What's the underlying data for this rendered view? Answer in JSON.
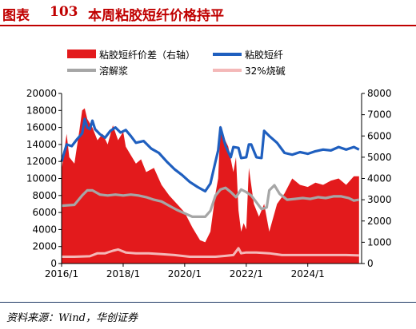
{
  "figure": {
    "label": "图表",
    "number": "103",
    "title": "本周粘胶短纤价格持平",
    "source": "资料来源：Wind，华创证券"
  },
  "colors": {
    "title": "#c00000",
    "spread": "#e31a1c",
    "viscose": "#1f5fbf",
    "pulp": "#a6a6a6",
    "soda": "#f4b8b8",
    "footer_rule": "#1f3864"
  },
  "chart_data": {
    "type": "line",
    "x_ticks": [
      "2016/1",
      "2018/1",
      "2020/1",
      "2022/1",
      "2024/1"
    ],
    "x_range": [
      "2016-01-01",
      "2025-10-01"
    ],
    "y_left": {
      "min": 0,
      "max": 20000,
      "ticks": [
        0,
        2000,
        4000,
        6000,
        8000,
        10000,
        12000,
        14000,
        16000,
        18000,
        20000
      ]
    },
    "y_right": {
      "min": 0,
      "max": 8000,
      "ticks": [
        0,
        1000,
        2000,
        3000,
        4000,
        5000,
        6000,
        7000,
        8000
      ]
    },
    "legend": [
      "粘胶短纤价差（右轴）",
      "粘胶短纤",
      "溶解浆",
      "32%烧碱"
    ],
    "legend_position": "top",
    "grid": false,
    "series": [
      {
        "name": "粘胶短纤价差（右轴）",
        "type": "area",
        "axis": "right",
        "x": [
          "2016-01-01",
          "2016-03-01",
          "2016-04-01",
          "2016-06-01",
          "2016-08-01",
          "2016-09-01",
          "2016-10-01",
          "2016-11-01",
          "2017-01-01",
          "2017-03-01",
          "2017-05-01",
          "2017-07-01",
          "2017-09-01",
          "2017-11-01",
          "2018-01-01",
          "2018-02-01",
          "2018-04-01",
          "2018-06-01",
          "2018-08-01",
          "2018-10-01",
          "2019-01-01",
          "2019-04-01",
          "2019-07-01",
          "2019-10-01",
          "2020-01-01",
          "2020-04-01",
          "2020-07-01",
          "2020-09-01",
          "2020-11-01",
          "2021-01-01",
          "2021-02-01",
          "2021-03-01",
          "2021-04-01",
          "2021-06-01",
          "2021-08-01",
          "2021-09-01",
          "2021-10-01",
          "2021-11-01",
          "2021-12-01",
          "2022-01-01",
          "2022-02-01",
          "2022-04-01",
          "2022-06-01",
          "2022-08-01",
          "2022-10-01",
          "2023-01-01",
          "2023-04-01",
          "2023-07-01",
          "2023-10-01",
          "2024-01-01",
          "2024-04-01",
          "2024-07-01",
          "2024-10-01",
          "2025-01-01",
          "2025-04-01",
          "2025-07-01",
          "2025-09-01"
        ],
        "values": [
          4400,
          6100,
          5000,
          4700,
          6300,
          7200,
          7300,
          6800,
          6400,
          5800,
          6100,
          5600,
          6500,
          5800,
          6200,
          5500,
          5100,
          4700,
          4900,
          4300,
          4500,
          3700,
          3200,
          2800,
          2400,
          1700,
          1100,
          1000,
          1500,
          3300,
          4000,
          6500,
          6000,
          5500,
          4300,
          5000,
          2500,
          1500,
          1900,
          1600,
          4500,
          2800,
          2200,
          2800,
          1500,
          2800,
          3300,
          4000,
          3700,
          3600,
          3800,
          3700,
          3900,
          4000,
          3700,
          4100,
          4100
        ]
      },
      {
        "name": "粘胶短纤",
        "type": "line",
        "axis": "left",
        "x": [
          "2016-01-01",
          "2016-03-01",
          "2016-05-01",
          "2016-07-01",
          "2016-09-01",
          "2016-10-01",
          "2016-11-01",
          "2016-12-01",
          "2017-01-01",
          "2017-02-01",
          "2017-04-01",
          "2017-06-01",
          "2017-08-01",
          "2017-10-01",
          "2017-12-01",
          "2018-02-01",
          "2018-04-01",
          "2018-06-01",
          "2018-09-01",
          "2018-12-01",
          "2019-03-01",
          "2019-06-01",
          "2019-09-01",
          "2019-12-01",
          "2020-03-01",
          "2020-06-01",
          "2020-09-01",
          "2020-11-01",
          "2021-01-01",
          "2021-02-01",
          "2021-03-01",
          "2021-05-01",
          "2021-07-01",
          "2021-08-01",
          "2021-10-01",
          "2021-11-01",
          "2022-01-01",
          "2022-02-01",
          "2022-03-01",
          "2022-05-01",
          "2022-07-01",
          "2022-08-01",
          "2022-10-01",
          "2023-01-01",
          "2023-04-01",
          "2023-07-01",
          "2023-10-01",
          "2024-01-01",
          "2024-04-01",
          "2024-07-01",
          "2024-10-01",
          "2025-01-01",
          "2025-04-01",
          "2025-07-01",
          "2025-09-01"
        ],
        "values": [
          12000,
          14000,
          13800,
          14600,
          15300,
          17000,
          16000,
          15800,
          16800,
          15800,
          15200,
          14800,
          15600,
          16000,
          15400,
          15700,
          15000,
          14200,
          14400,
          13500,
          13000,
          12000,
          11100,
          10400,
          9600,
          9000,
          8500,
          9400,
          12000,
          13300,
          16000,
          13800,
          12500,
          13700,
          13600,
          12400,
          12500,
          14000,
          14000,
          12500,
          12400,
          15600,
          15000,
          14200,
          13000,
          12800,
          13100,
          12900,
          13200,
          13400,
          13300,
          13700,
          13400,
          13700,
          13400
        ]
      },
      {
        "name": "溶解浆",
        "type": "line",
        "axis": "left",
        "x": [
          "2016-01-01",
          "2016-06-01",
          "2016-09-01",
          "2016-11-01",
          "2017-01-01",
          "2017-04-01",
          "2017-07-01",
          "2017-10-01",
          "2018-01-01",
          "2018-04-01",
          "2018-07-01",
          "2018-10-01",
          "2019-01-01",
          "2019-04-01",
          "2019-07-01",
          "2019-10-01",
          "2020-01-01",
          "2020-04-01",
          "2020-07-01",
          "2020-09-01",
          "2020-11-01",
          "2021-01-01",
          "2021-03-01",
          "2021-05-01",
          "2021-07-01",
          "2021-09-01",
          "2021-11-01",
          "2022-01-01",
          "2022-03-01",
          "2022-05-01",
          "2022-07-01",
          "2022-09-01",
          "2022-10-01",
          "2022-12-01",
          "2023-02-01",
          "2023-05-01",
          "2023-08-01",
          "2023-11-01",
          "2024-02-01",
          "2024-05-01",
          "2024-08-01",
          "2024-11-01",
          "2025-02-01",
          "2025-05-01",
          "2025-07-01",
          "2025-09-01"
        ],
        "values": [
          6800,
          6900,
          8000,
          8600,
          8600,
          8100,
          8000,
          8100,
          8000,
          8100,
          8000,
          7800,
          7500,
          7300,
          6800,
          6300,
          5900,
          5500,
          5500,
          5500,
          6200,
          8000,
          8700,
          8900,
          8400,
          7800,
          8700,
          8400,
          8000,
          7200,
          6400,
          6600,
          8600,
          9200,
          8200,
          7500,
          7600,
          7700,
          7600,
          7800,
          7700,
          7900,
          7900,
          7700,
          7400,
          7500
        ]
      },
      {
        "name": "32%烧碱",
        "type": "line",
        "axis": "left",
        "x": [
          "2016-01-01",
          "2016-06-01",
          "2016-12-01",
          "2017-03-01",
          "2017-06-01",
          "2017-09-01",
          "2017-11-01",
          "2018-02-01",
          "2018-06-01",
          "2018-11-01",
          "2019-04-01",
          "2019-09-01",
          "2020-03-01",
          "2020-08-01",
          "2021-01-01",
          "2021-05-01",
          "2021-08-01",
          "2021-10-01",
          "2021-11-01",
          "2022-01-01",
          "2022-05-01",
          "2022-10-01",
          "2023-03-01",
          "2023-08-01",
          "2024-01-01",
          "2024-06-01",
          "2024-11-01",
          "2025-04-01",
          "2025-09-01"
        ],
        "values": [
          800,
          800,
          850,
          1200,
          1200,
          1500,
          1650,
          1300,
          1200,
          1200,
          1100,
          1000,
          800,
          800,
          800,
          900,
          1000,
          1800,
          1200,
          1300,
          1300,
          1200,
          1000,
          1000,
          1000,
          1000,
          1000,
          1000,
          950
        ]
      }
    ]
  }
}
